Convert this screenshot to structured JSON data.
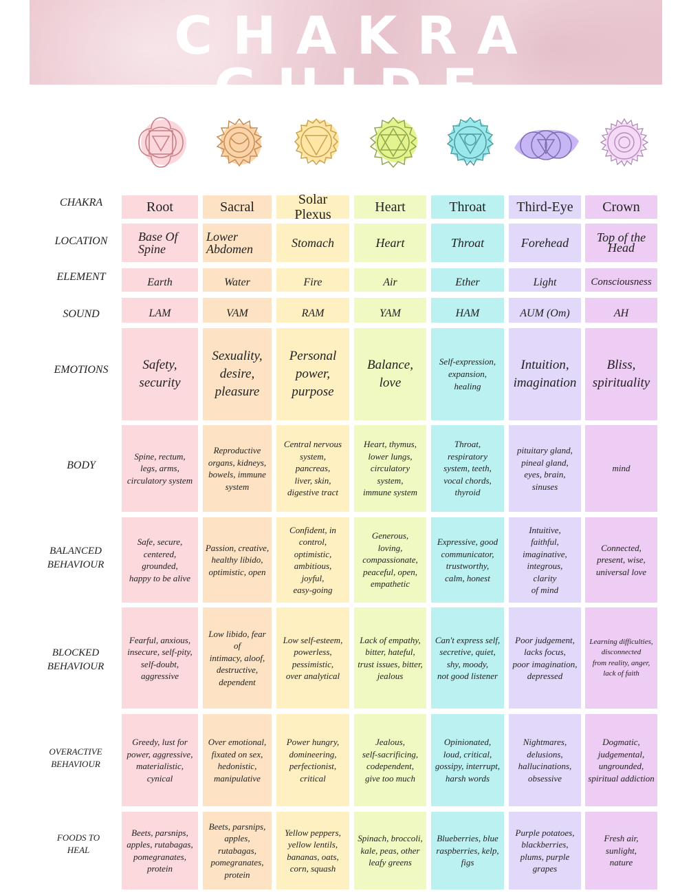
{
  "title": "CHAKRA GUIDE",
  "colors": {
    "root": "#fbd9dd",
    "sacral": "#fde3c3",
    "solar_plexus": "#fff0c2",
    "heart": "#f0f9c2",
    "throat": "#bcf1f2",
    "third_eye": "#e2d9fa",
    "crown": "#edcdf3"
  },
  "icons": [
    "root-chakra-icon",
    "sacral-chakra-icon",
    "solar-plexus-chakra-icon",
    "heart-chakra-icon",
    "throat-chakra-icon",
    "third-eye-chakra-icon",
    "crown-chakra-icon"
  ],
  "row_labels": {
    "chakra": "CHAKRA",
    "location": "LOCATION",
    "element": "ELEMENT",
    "sound": "SOUND",
    "emotions": "EMOTIONS",
    "body": "BODY",
    "balanced": "BALANCED\nBEHAVIOUR",
    "blocked": "BLOCKED\nBEHAVIOUR",
    "overactive": "OVERACTIVE\nBEHAVIOUR",
    "foods": "FOODS TO\nHEAL"
  },
  "chakras": [
    {
      "name": "Root",
      "location": "Base Of\nSpine",
      "element": "Earth",
      "sound": "LAM",
      "emotions": "Safety,\nsecurity",
      "body": "Spine, rectum,\nlegs, arms,\ncirculatory system",
      "balanced": "Safe, secure,\ncentered,\ngrounded,\nhappy to be alive",
      "blocked": "Fearful, anxious,\ninsecure, self-pity,\nself-doubt,\naggressive",
      "overactive": "Greedy, lust for\npower, aggressive,\nmaterialistic,\ncynical",
      "foods": "Beets, parsnips,\napples, rutabagas,\npomegranates,\nprotein"
    },
    {
      "name": "Sacral",
      "location": "Lower\nAbdomen",
      "element": "Water",
      "sound": "VAM",
      "emotions": "Sexuality,\ndesire,\npleasure",
      "body": "Reproductive\norgans, kidneys,\nbowels, immune\nsystem",
      "balanced": "Passion, creative,\nhealthy libido,\noptimistic, open",
      "blocked": "Low libido, fear of\nintimacy, aloof,\ndestructive,\ndependent",
      "overactive": "Over emotional,\nfixated on sex,\nhedonistic,\nmanipulative",
      "foods": "Beets, parsnips,\napples, rutabagas,\npomegranates,\nprotein"
    },
    {
      "name": "Solar Plexus",
      "location": "Stomach",
      "element": "Fire",
      "sound": "RAM",
      "emotions": "Personal\npower,\npurpose",
      "body": "Central nervous\nsystem,\npancreas,\nliver, skin,\ndigestive tract",
      "balanced": "Confident, in\ncontrol,\noptimistic,\nambitious,\njoyful,\neasy-going",
      "blocked": "Low self-esteem,\npowerless,\npessimistic,\nover analytical",
      "overactive": "Power hungry,\ndomineering,\nperfectionist,\ncritical",
      "foods": "Yellow peppers,\nyellow lentils,\nbananas, oats,\ncorn, squash"
    },
    {
      "name": "Heart",
      "location": "Heart",
      "element": "Air",
      "sound": "YAM",
      "emotions": "Balance,\nlove",
      "body": "Heart, thymus,\nlower lungs,\ncirculatory\nsystem,\nimmune system",
      "balanced": "Generous,\nloving,\ncompassionate,\npeaceful, open,\nempathetic",
      "blocked": "Lack of empathy,\nbitter, hateful,\ntrust issues, bitter,\njealous",
      "overactive": "Jealous,\nself-sacrificing,\ncodependent,\ngive too much",
      "foods": "Spinach, broccoli,\nkale, peas, other\nleafy greens"
    },
    {
      "name": "Throat",
      "location": "Throat",
      "element": "Ether",
      "sound": "HAM",
      "emotions": "Self-expression,\nexpansion,\nhealing",
      "body": "Throat,\nrespiratory\nsystem, teeth,\nvocal chords,\nthyroid",
      "balanced": "Expressive, good\ncommunicator,\ntrustworthy,\ncalm, honest",
      "blocked": "Can't express self,\nsecretive, quiet,\nshy, moody,\nnot good listener",
      "overactive": "Opinionated,\nloud, critical,\ngossipy, interrupt,\nharsh words",
      "foods": "Blueberries, blue\nraspberries, kelp,\nfigs"
    },
    {
      "name": "Third-Eye",
      "location": "Forehead",
      "element": "Light",
      "sound": "AUM (Om)",
      "emotions": "Intuition,\nimagination",
      "body": "pituitary gland,\npineal gland,\neyes, brain,\nsinuses",
      "balanced": "Intuitive,\nfaithful,\nimaginative,\nintegrous,\nclarity\nof mind",
      "blocked": "Poor judgement,\nlacks focus,\npoor imagination,\ndepressed",
      "overactive": "Nightmares,\ndelusions,\nhallucinations,\nobsessive",
      "foods": "Purple potatoes,\nblackberries,\nplums, purple\ngrapes"
    },
    {
      "name": "Crown",
      "location": "Top of the\nHead",
      "element": "Consciousness",
      "sound": "AH",
      "emotions": "Bliss,\nspirituality",
      "body": "mind",
      "balanced": "Connected,\npresent, wise,\nuniversal love",
      "blocked": "Learning difficulties,\ndisconnected\nfrom reality, anger,\nlack of faith",
      "overactive": "Dogmatic,\njudgemental,\nungrounded,\nspiritual addiction",
      "foods": "Fresh air,\nsunlight,\nnature"
    }
  ]
}
